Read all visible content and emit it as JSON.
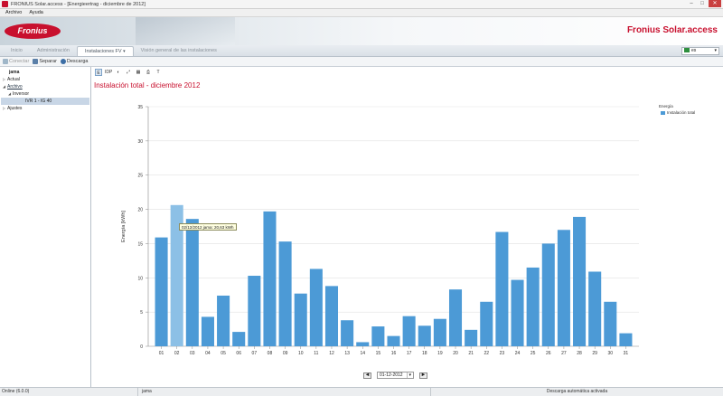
{
  "window": {
    "title": "FRONIUS Solar.access - [Energieertrag - diciembre de 2012]",
    "buttons": [
      "–",
      "□",
      "✕"
    ]
  },
  "menu": {
    "items": [
      "Archivo",
      "Ayuda"
    ]
  },
  "banner": {
    "logo_text": "Fronius",
    "brand": "Fronius Solar.access",
    "brand_color": "#c8102e"
  },
  "nav": {
    "tabs": [
      "Inicio",
      "Administración",
      "Instalaciones FV",
      "Visión general de las instalaciones"
    ],
    "active_tab": "Instalaciones FV",
    "language": "es"
  },
  "toolbar": {
    "connect": "Conectar",
    "separate": "Separar",
    "download": "Descarga"
  },
  "sidebar": {
    "root": "jama",
    "items": [
      "Actual",
      "Archivo",
      "Inversor",
      "IVR 1 - IG 40",
      "Ajustes"
    ]
  },
  "chart_toolbar": {
    "buttons": [
      "E",
      "IDP",
      "◐",
      "⤢",
      "▦",
      "⎙",
      "T"
    ]
  },
  "tooltip": {
    "text": "02/12/2012 jama: 20,63 kWh"
  },
  "date_nav": {
    "value": "01-12-2012",
    "prev": "◄",
    "next": "►"
  },
  "status": {
    "left": "Online (6.0.0)",
    "middle": "jama",
    "right": "Descarga automática activada"
  },
  "chart_data": {
    "type": "bar",
    "title": "Instalación total - diciembre 2012",
    "ylabel": "Energía [kWh]",
    "xlabel": "",
    "ylim": [
      0,
      35
    ],
    "yticks": [
      0,
      5,
      10,
      15,
      20,
      25,
      30,
      35
    ],
    "grid": true,
    "bar_color": "#4c9ad6",
    "highlight_color": "#8cc0e6",
    "highlight_index": 1,
    "categories": [
      "01",
      "02",
      "03",
      "04",
      "05",
      "06",
      "07",
      "08",
      "09",
      "10",
      "11",
      "12",
      "13",
      "14",
      "15",
      "16",
      "17",
      "18",
      "19",
      "20",
      "21",
      "22",
      "23",
      "24",
      "25",
      "26",
      "27",
      "28",
      "29",
      "30",
      "31"
    ],
    "series": [
      {
        "name": "Instalación total",
        "values": [
          15.9,
          20.63,
          18.6,
          4.3,
          7.4,
          2.1,
          10.3,
          19.7,
          15.3,
          7.7,
          11.3,
          8.8,
          3.8,
          0.6,
          2.9,
          1.5,
          4.4,
          3.0,
          4.0,
          8.3,
          2.4,
          6.5,
          16.7,
          9.7,
          11.5,
          15.0,
          17.0,
          18.9,
          10.9,
          6.5,
          1.9
        ]
      }
    ],
    "legend": {
      "title": "Energía",
      "placement": "top-right"
    }
  }
}
